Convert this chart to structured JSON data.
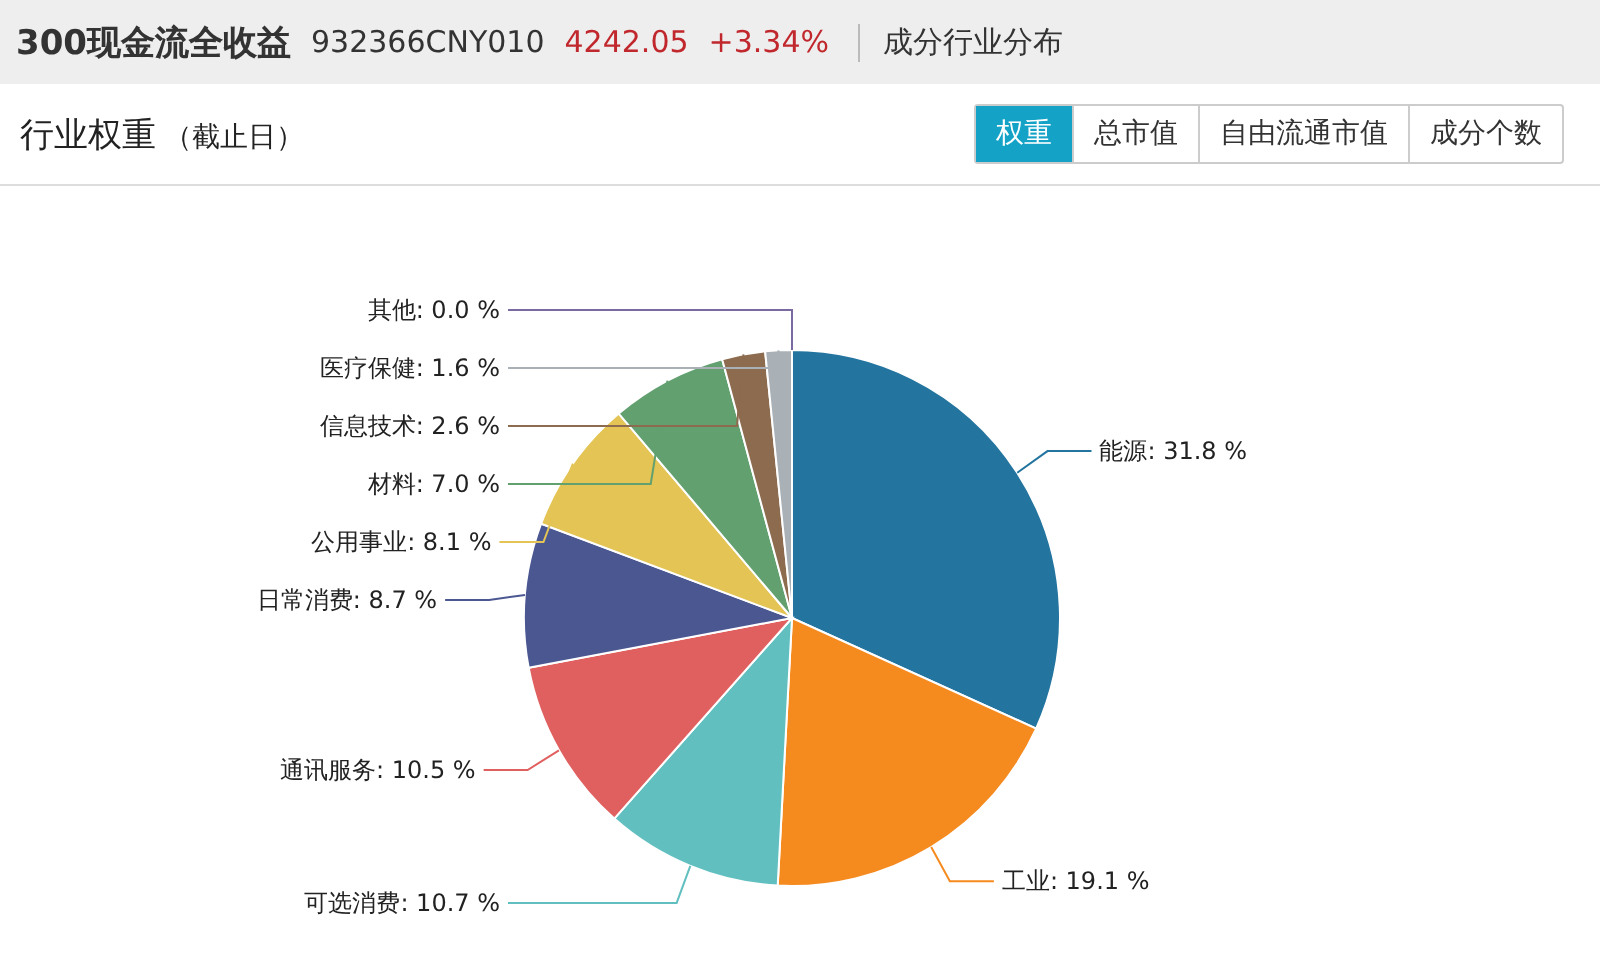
{
  "chart_data": {
    "type": "pie",
    "title": "300现金流全收益",
    "subtitle": "行业权重",
    "annotations": [
      "932366CNY010",
      "4242.05",
      "+3.34%",
      "成分行业分布",
      "（截止日）",
      "权重",
      "总市值",
      "自由流通市值",
      "成分个数"
    ],
    "categories": [
      "能源",
      "工业",
      "可选消费",
      "通讯服务",
      "日常消费",
      "公用事业",
      "材料",
      "信息技术",
      "医疗保健",
      "其他"
    ],
    "values": [
      31.8,
      19.1,
      10.7,
      10.5,
      8.7,
      8.1,
      7.0,
      2.6,
      1.6,
      0.0
    ],
    "value_labels": [
      ": 31.8 %",
      ": 19.1 %",
      ": 10.7 %",
      ": 10.5 %",
      ": 8.7 %",
      ": 8.1 %",
      ": 7.0 %",
      ": 2.6 %",
      ": 1.6 %",
      ": 0.0 %"
    ],
    "colors": [
      "#23749f",
      "#f58a1f",
      "#62bfc0",
      "#e06060",
      "#4b5791",
      "#e3c454",
      "#62a06f",
      "#8c6b4f",
      "#a9b0b6",
      "#7a6aa0"
    ]
  }
}
